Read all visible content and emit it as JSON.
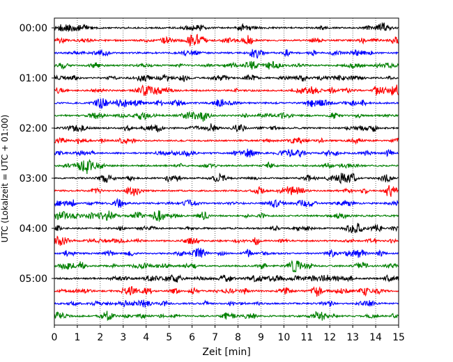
{
  "chart_data": {
    "type": "line",
    "title": "",
    "xlabel": "Zeit  [min]",
    "ylabel": "UTC (Lokalzeit = UTC + 01:00)",
    "xlim": [
      0,
      15
    ],
    "x_ticks": [
      "0",
      "1",
      "2",
      "3",
      "4",
      "5",
      "6",
      "7",
      "8",
      "9",
      "10",
      "11",
      "12",
      "13",
      "14",
      "15"
    ],
    "y_ticks": [
      "00:00",
      "01:00",
      "02:00",
      "03:00",
      "04:00",
      "05:00"
    ],
    "grid": {
      "x": true,
      "y": false,
      "style": "dotted"
    },
    "trace_colors": [
      "#000000",
      "#ff0000",
      "#0000ff",
      "#008000"
    ],
    "trace_interval_minutes": 15,
    "trace_count": 24,
    "first_trace_start": "00:00",
    "last_trace_start": "05:45",
    "legend": "none"
  }
}
